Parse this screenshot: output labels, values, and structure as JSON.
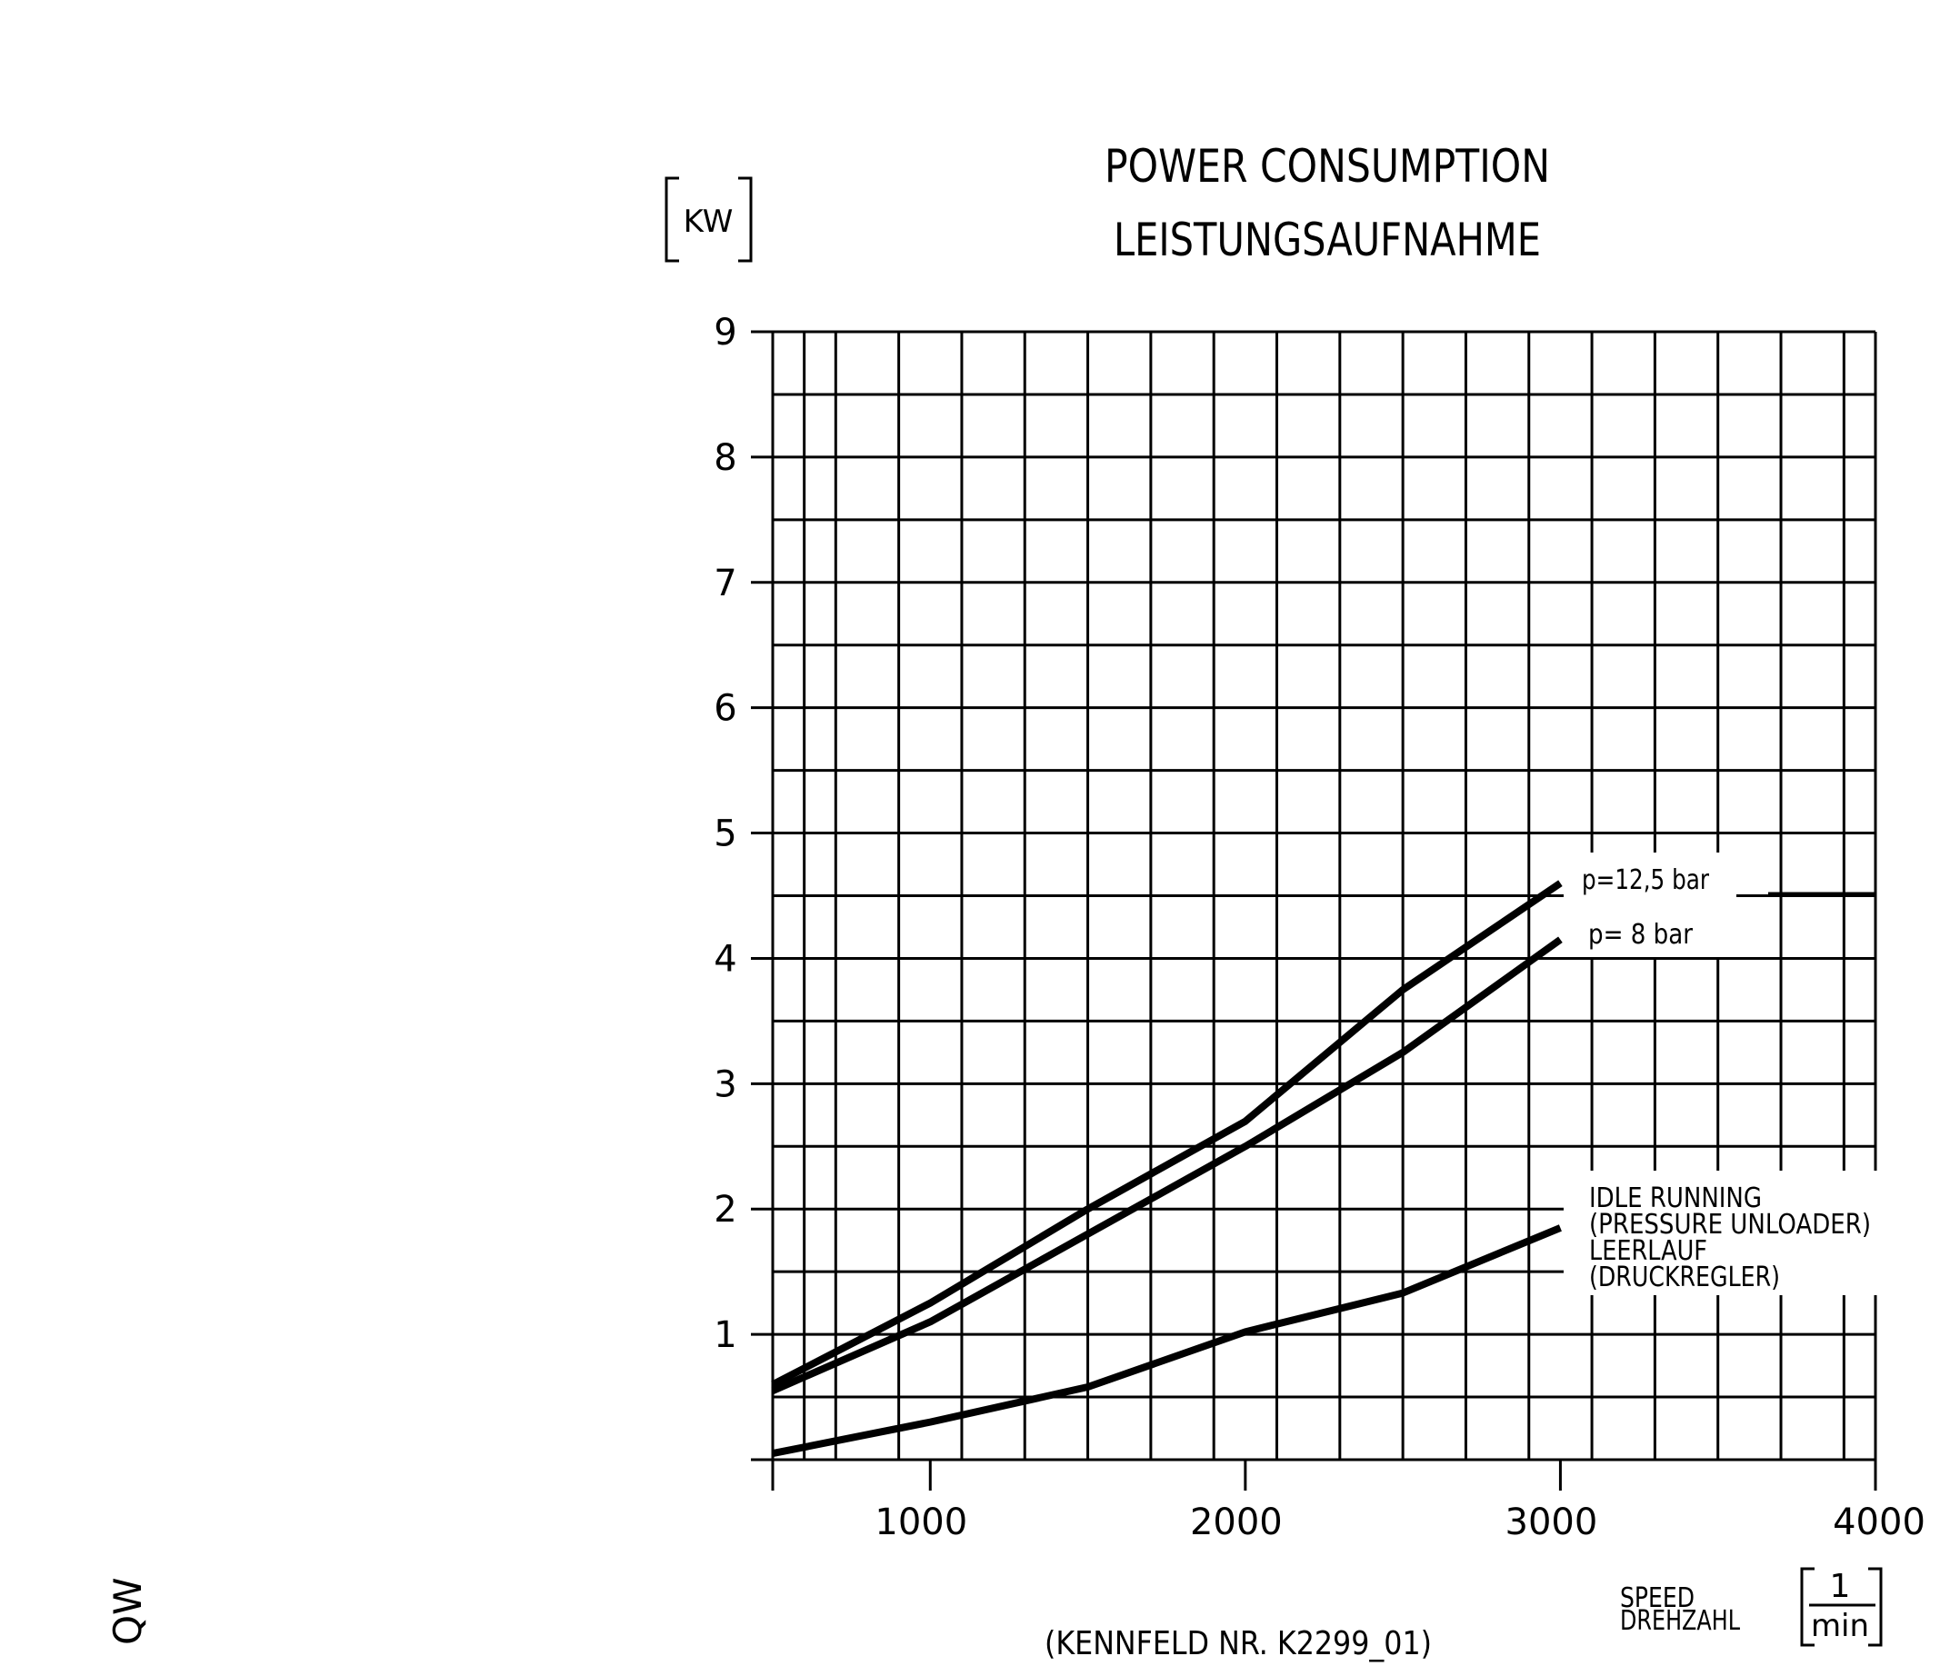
{
  "chart_data": {
    "type": "line",
    "title": "POWER CONSUMPTION",
    "subtitle": "LEISTUNGSAUFNAHME",
    "ylabel": "KW",
    "xlabel_en": "SPEED",
    "xlabel_de": "DREHZAHL",
    "x_unit_numerator": "1",
    "x_unit_denominator": "min",
    "xlim": [
      500,
      4000
    ],
    "ylim": [
      0,
      9
    ],
    "x_ticks": [
      1000,
      2000,
      3000,
      4000
    ],
    "y_ticks": [
      1,
      2,
      3,
      4,
      5,
      6,
      7,
      8,
      9
    ],
    "grid": true,
    "footnote": "(KENNFELD NR. K2299_01)",
    "corner_mark": "QW",
    "series": [
      {
        "name": "p=12,5 bar",
        "x": [
          500,
          1000,
          1500,
          2000,
          2500,
          3000
        ],
        "y": [
          0.6,
          1.25,
          2.0,
          2.7,
          3.75,
          4.6
        ]
      },
      {
        "name": "p= 8 bar",
        "x": [
          500,
          1000,
          1500,
          2000,
          2500,
          3000
        ],
        "y": [
          0.55,
          1.1,
          1.8,
          2.5,
          3.25,
          4.15
        ]
      },
      {
        "name": "IDLE RUNNING (PRESSURE UNLOADER) LEERLAUF (DRUCKREGLER)",
        "label_lines": [
          "IDLE RUNNING",
          "(PRESSURE UNLOADER)",
          "LEERLAUF",
          "(DRUCKREGLER)"
        ],
        "x": [
          500,
          1000,
          1500,
          2000,
          2500,
          3000
        ],
        "y": [
          0.05,
          0.3,
          0.58,
          1.02,
          1.33,
          1.85
        ]
      }
    ]
  }
}
